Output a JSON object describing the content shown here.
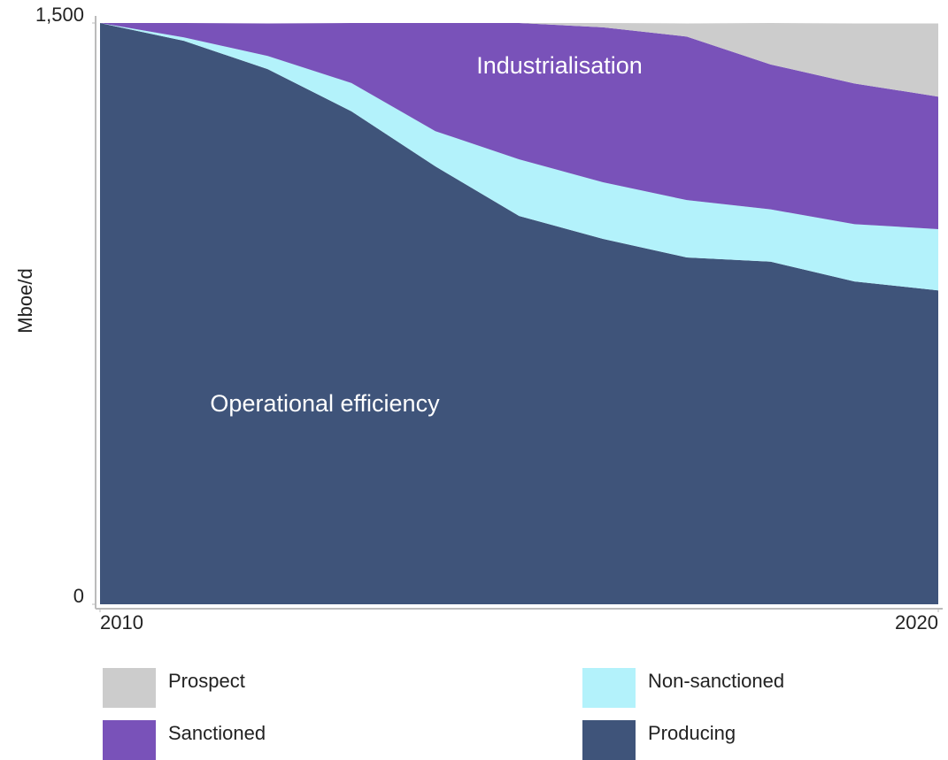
{
  "chart_data": {
    "type": "stacked_area",
    "y_label": "Mboe/d",
    "x": [
      2010,
      2011,
      2012,
      2013,
      2014,
      2015,
      2016,
      2017,
      2018,
      2019,
      2020
    ],
    "xlim": [
      2010,
      2020
    ],
    "xticks": [
      2010,
      2020
    ],
    "ylim": [
      0,
      1500
    ],
    "yticks": [
      0,
      {
        "value": 1500,
        "label": "1,500"
      }
    ],
    "series": [
      {
        "name": "Producing",
        "color": "#3f547a",
        "values": [
          1500,
          1454,
          1381,
          1272,
          1130,
          1002,
          943,
          895,
          884,
          833,
          810
        ]
      },
      {
        "name": "Non-sanctioned",
        "color": "#b3f2fb",
        "values": [
          0,
          9,
          34,
          73,
          91,
          146,
          146,
          148,
          135,
          148,
          158
        ]
      },
      {
        "name": "Sanctioned",
        "color": "#7952b9",
        "values": [
          0,
          37,
          84,
          155,
          279,
          352,
          400,
          422,
          374,
          363,
          342
        ]
      },
      {
        "name": "Prospect",
        "color": "#cccccc",
        "values": [
          0,
          0,
          0,
          0,
          0,
          0,
          11,
          34,
          107,
          155,
          189
        ]
      }
    ],
    "annotations": [
      "Industrialisation",
      "Operational efficiency"
    ]
  }
}
